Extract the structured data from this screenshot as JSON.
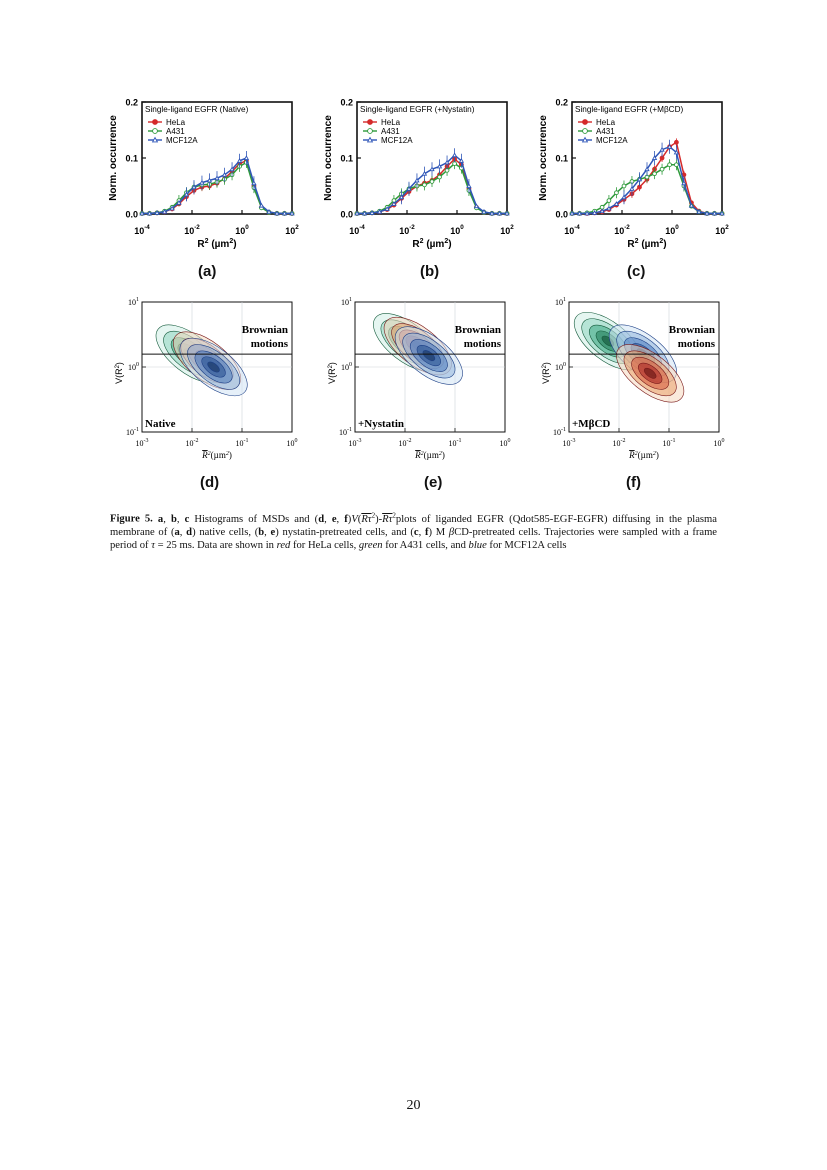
{
  "histograms": [
    {
      "label": "(a)",
      "chart_data": {
        "type": "line",
        "title": "Single-ligand EGFR (Native)",
        "xlabel": "R2 (µm2)",
        "ylabel": "Norm. occurrence",
        "x_scale": "log",
        "xlim": [
          0.0001,
          100
        ],
        "ylim": [
          0,
          0.2
        ],
        "x_ticks": [
          "10^-4",
          "10^-2",
          "10^0",
          "10^2"
        ],
        "y_ticks": [
          "0.0",
          "0.1",
          "0.2"
        ],
        "legend_position": "top-left",
        "x": [
          0.0001,
          0.0002,
          0.0004,
          0.0008,
          0.0016,
          0.003,
          0.006,
          0.012,
          0.025,
          0.05,
          0.1,
          0.2,
          0.4,
          0.8,
          1.5,
          3,
          6,
          12,
          25,
          50,
          100
        ],
        "series": [
          {
            "name": "HeLa",
            "color": "#d42a2a",
            "marker": "filled-circle",
            "values": [
              0.001,
              0.001,
              0.002,
              0.004,
              0.009,
              0.018,
              0.031,
              0.042,
              0.048,
              0.05,
              0.055,
              0.063,
              0.076,
              0.09,
              0.095,
              0.05,
              0.012,
              0.003,
              0.001,
              0.001,
              0.001
            ]
          },
          {
            "name": "A431",
            "color": "#2e9a3a",
            "marker": "open-circle",
            "values": [
              0.001,
              0.001,
              0.002,
              0.005,
              0.012,
              0.024,
              0.038,
              0.048,
              0.052,
              0.053,
              0.057,
              0.062,
              0.07,
              0.085,
              0.092,
              0.047,
              0.011,
              0.003,
              0.001,
              0.001,
              0.001
            ]
          },
          {
            "name": "MCF12A",
            "color": "#2f56b8",
            "marker": "open-triangle",
            "values": [
              0.001,
              0.001,
              0.002,
              0.004,
              0.01,
              0.02,
              0.035,
              0.048,
              0.056,
              0.06,
              0.064,
              0.07,
              0.08,
              0.095,
              0.1,
              0.055,
              0.015,
              0.004,
              0.001,
              0.001,
              0.001
            ]
          }
        ]
      }
    },
    {
      "label": "(b)",
      "chart_data": {
        "type": "line",
        "title": "Single-ligand EGFR (+Nystatin)",
        "xlabel": "R2 (µm2)",
        "ylabel": "Norm. occurrence",
        "x_scale": "log",
        "xlim": [
          0.0001,
          100
        ],
        "ylim": [
          0,
          0.2
        ],
        "x_ticks": [
          "10^-4",
          "10^-2",
          "10^0",
          "10^2"
        ],
        "y_ticks": [
          "0.0",
          "0.1",
          "0.2"
        ],
        "legend_position": "top-left",
        "x": [
          0.0001,
          0.0002,
          0.0004,
          0.0008,
          0.0016,
          0.003,
          0.006,
          0.012,
          0.025,
          0.05,
          0.1,
          0.2,
          0.4,
          0.8,
          1.5,
          3,
          6,
          12,
          25,
          50,
          100
        ],
        "series": [
          {
            "name": "HeLa",
            "color": "#d42a2a",
            "marker": "filled-circle",
            "values": [
              0.001,
              0.001,
              0.002,
              0.004,
              0.008,
              0.016,
              0.028,
              0.04,
              0.05,
              0.055,
              0.06,
              0.07,
              0.085,
              0.098,
              0.088,
              0.045,
              0.012,
              0.003,
              0.001,
              0.001,
              0.001
            ]
          },
          {
            "name": "A431",
            "color": "#2e9a3a",
            "marker": "open-circle",
            "values": [
              0.001,
              0.001,
              0.002,
              0.005,
              0.012,
              0.024,
              0.036,
              0.045,
              0.05,
              0.052,
              0.058,
              0.066,
              0.078,
              0.09,
              0.082,
              0.042,
              0.011,
              0.003,
              0.001,
              0.001,
              0.001
            ]
          },
          {
            "name": "MCF12A",
            "color": "#2f56b8",
            "marker": "open-triangle",
            "values": [
              0.001,
              0.001,
              0.002,
              0.004,
              0.009,
              0.018,
              0.03,
              0.045,
              0.06,
              0.072,
              0.08,
              0.085,
              0.092,
              0.105,
              0.095,
              0.05,
              0.014,
              0.004,
              0.001,
              0.001,
              0.001
            ]
          }
        ]
      }
    },
    {
      "label": "(c)",
      "chart_data": {
        "type": "line",
        "title": "Single-ligand EGFR (+MβCD)",
        "xlabel": "R2 (µm2)",
        "ylabel": "Norm. occurrence",
        "x_scale": "log",
        "xlim": [
          0.0001,
          100
        ],
        "ylim": [
          0,
          0.2
        ],
        "x_ticks": [
          "10^-4",
          "10^-2",
          "10^0",
          "10^2"
        ],
        "y_ticks": [
          "0.0",
          "0.1",
          "0.2"
        ],
        "legend_position": "top-left",
        "x": [
          0.0001,
          0.0002,
          0.0004,
          0.0008,
          0.0016,
          0.003,
          0.006,
          0.012,
          0.025,
          0.05,
          0.1,
          0.2,
          0.4,
          0.8,
          1.5,
          3,
          6,
          12,
          25,
          50,
          100
        ],
        "series": [
          {
            "name": "HeLa",
            "color": "#d42a2a",
            "marker": "filled-circle",
            "values": [
              0.001,
              0.001,
              0.001,
              0.002,
              0.004,
              0.008,
              0.016,
              0.026,
              0.036,
              0.048,
              0.062,
              0.08,
              0.1,
              0.12,
              0.128,
              0.07,
              0.02,
              0.005,
              0.001,
              0.001,
              0.001
            ]
          },
          {
            "name": "A431",
            "color": "#2e9a3a",
            "marker": "open-circle",
            "values": [
              0.001,
              0.001,
              0.002,
              0.005,
              0.012,
              0.024,
              0.038,
              0.05,
              0.058,
              0.062,
              0.066,
              0.072,
              0.08,
              0.088,
              0.088,
              0.05,
              0.014,
              0.004,
              0.001,
              0.001,
              0.001
            ]
          },
          {
            "name": "MCF12A",
            "color": "#2f56b8",
            "marker": "open-triangle",
            "values": [
              0.001,
              0.001,
              0.001,
              0.002,
              0.005,
              0.01,
              0.018,
              0.03,
              0.045,
              0.062,
              0.08,
              0.1,
              0.115,
              0.12,
              0.11,
              0.055,
              0.015,
              0.004,
              0.001,
              0.001,
              0.001
            ]
          }
        ]
      }
    }
  ],
  "density_plots": [
    {
      "label": "(d)",
      "condition_text": "Native",
      "reference_line_text": [
        "Brownian",
        "motions"
      ],
      "chart_data": {
        "type": "heatmap",
        "xlabel": "R2(µm2)",
        "ylabel": "V(R2)",
        "x_scale": "log",
        "y_scale": "log",
        "xlim": [
          0.001,
          1
        ],
        "ylim": [
          0.1,
          10
        ],
        "x_ticks": [
          "10-3",
          "10-2",
          "10-1",
          "100"
        ],
        "y_ticks": [
          "10-1",
          "100",
          "101"
        ],
        "reference_line_y": 1.58,
        "clusters": [
          {
            "series": "A431",
            "color": "#2e9a3a",
            "center_x": 0.009,
            "center_y": 1.6
          },
          {
            "series": "HeLa",
            "color": "#d42a2a",
            "center_x": 0.02,
            "center_y": 1.25
          },
          {
            "series": "MCF12A",
            "color": "#2f56b8",
            "center_x": 0.027,
            "center_y": 1.0
          }
        ]
      }
    },
    {
      "label": "(e)",
      "condition_text": "+Nystatin",
      "reference_line_text": [
        "Brownian",
        "motions"
      ],
      "chart_data": {
        "type": "heatmap",
        "xlabel": "R2(µm2)",
        "ylabel": "V(R2)",
        "x_scale": "log",
        "y_scale": "log",
        "xlim": [
          0.001,
          1
        ],
        "ylim": [
          0.1,
          10
        ],
        "x_ticks": [
          "10-3",
          "10-2",
          "10-1",
          "100"
        ],
        "y_ticks": [
          "10-1",
          "100",
          "101"
        ],
        "reference_line_y": 1.58,
        "clusters": [
          {
            "series": "A431",
            "color": "#2e9a3a",
            "center_x": 0.011,
            "center_y": 2.4
          },
          {
            "series": "HeLa",
            "color": "#d42a2a",
            "center_x": 0.018,
            "center_y": 2.1
          },
          {
            "series": "MCF12A",
            "color": "#2f56b8",
            "center_x": 0.03,
            "center_y": 1.5
          }
        ]
      }
    },
    {
      "label": "(f)",
      "condition_text": "+MβCD",
      "reference_line_text": [
        "Brownian",
        "motions"
      ],
      "chart_data": {
        "type": "heatmap",
        "xlabel": "R2(µm2)",
        "ylabel": "V(R2)",
        "x_scale": "log",
        "y_scale": "log",
        "xlim": [
          0.001,
          1
        ],
        "ylim": [
          0.1,
          10
        ],
        "x_ticks": [
          "10-3",
          "10-2",
          "10-1",
          "100"
        ],
        "y_ticks": [
          "10-1",
          "100",
          "101"
        ],
        "reference_line_y": 1.58,
        "clusters": [
          {
            "series": "A431",
            "color": "#2e9a3a",
            "center_x": 0.006,
            "center_y": 2.5
          },
          {
            "series": "MCF12A",
            "color": "#2f56b8",
            "center_x": 0.03,
            "center_y": 1.6
          },
          {
            "series": "HeLa",
            "color": "#d42a2a",
            "center_x": 0.042,
            "center_y": 0.8
          }
        ]
      }
    }
  ],
  "caption": {
    "prefix": "Figure 5.",
    "parts": [
      {
        "t": " "
      },
      {
        "t": "a",
        "b": true
      },
      {
        "t": ", "
      },
      {
        "t": "b",
        "b": true
      },
      {
        "t": ", "
      },
      {
        "t": "c",
        "b": true
      },
      {
        "t": " Histograms of MSDs and ("
      },
      {
        "t": "d",
        "b": true
      },
      {
        "t": ", "
      },
      {
        "t": "e",
        "b": true
      },
      {
        "t": ", "
      },
      {
        "t": "f",
        "b": true
      },
      {
        "t": ")"
      },
      {
        "t": "V",
        "i": true
      },
      {
        "t": "("
      },
      {
        "t": "Rτ",
        "i": true,
        "o": true
      },
      {
        "t": "2",
        "sup": true
      },
      {
        "t": ")-"
      },
      {
        "t": "Rτ",
        "i": true,
        "o": true
      },
      {
        "t": "2",
        "sup": true
      },
      {
        "t": "plots of liganded EGFR (Qdot585-EGF-EGFR) diffusing in the plasma membrane of ("
      },
      {
        "t": "a",
        "b": true
      },
      {
        "t": ", "
      },
      {
        "t": "d",
        "b": true
      },
      {
        "t": ") native cells, ("
      },
      {
        "t": "b",
        "b": true
      },
      {
        "t": ", "
      },
      {
        "t": "e",
        "b": true
      },
      {
        "t": ") nystatin-pretreated cells, and ("
      },
      {
        "t": "c",
        "b": true
      },
      {
        "t": ", "
      },
      {
        "t": "f",
        "b": true
      },
      {
        "t": ") M "
      },
      {
        "t": "β",
        "i": true
      },
      {
        "t": "CD-pretreated cells. Trajectories were sampled with a frame period of "
      },
      {
        "t": "τ",
        "i": true
      },
      {
        "t": " = 25 ms. Data are shown in "
      },
      {
        "t": "red",
        "i": true
      },
      {
        "t": " for HeLa cells, "
      },
      {
        "t": "green",
        "i": true
      },
      {
        "t": " for A431 cells, and "
      },
      {
        "t": "blue",
        "i": true
      },
      {
        "t": " for MCF12A cells"
      }
    ]
  },
  "page_number": "20"
}
